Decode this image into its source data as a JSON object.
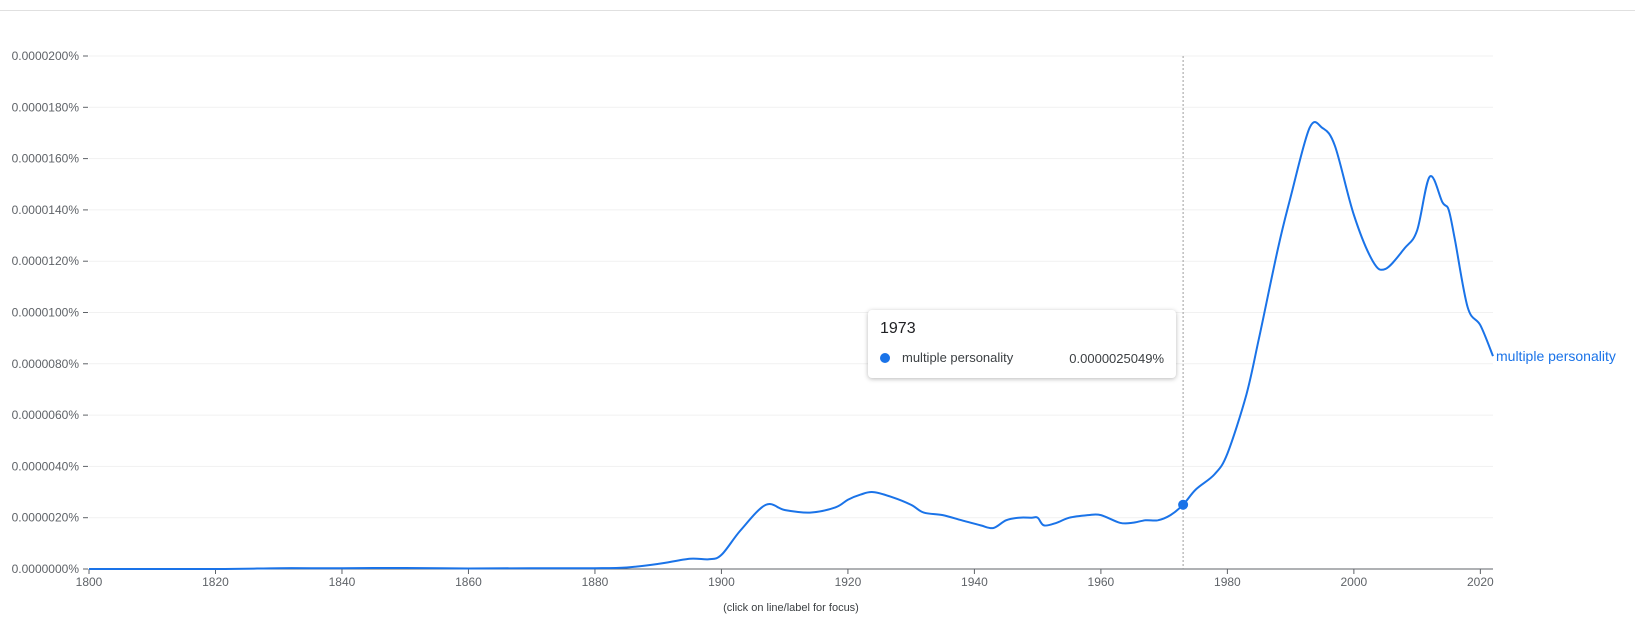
{
  "chart_data": {
    "type": "line",
    "x_ticks": [
      1800,
      1820,
      1840,
      1860,
      1880,
      1900,
      1920,
      1940,
      1960,
      1980,
      2000,
      2020
    ],
    "y_ticks": [
      "0.0000000%",
      "0.0000020%",
      "0.0000040%",
      "0.0000060%",
      "0.0000080%",
      "0.0000100%",
      "0.0000120%",
      "0.0000140%",
      "0.0000160%",
      "0.0000180%",
      "0.0000200%"
    ],
    "xlim": [
      1800,
      2022
    ],
    "ylim": [
      0,
      2e-05
    ],
    "grid": true,
    "series": [
      {
        "name": "multiple personality",
        "color": "#1a73e8",
        "x": [
          1800,
          1820,
          1830,
          1840,
          1850,
          1860,
          1870,
          1880,
          1885,
          1890,
          1895,
          1898,
          1900,
          1903,
          1907,
          1910,
          1914,
          1918,
          1920,
          1922,
          1924,
          1927,
          1930,
          1932,
          1935,
          1938,
          1941,
          1943,
          1945,
          1947,
          1949,
          1950,
          1951,
          1953,
          1955,
          1958,
          1960,
          1963,
          1965,
          1967,
          1969,
          1971,
          1973,
          1975,
          1978,
          1980,
          1983,
          1985,
          1988,
          1990,
          1993,
          1995,
          1997,
          2000,
          2003,
          2005,
          2008,
          2010,
          2012,
          2014,
          2015,
          2016,
          2018,
          2020,
          2022
        ],
        "y": [
          0.0,
          0.0,
          3e-08,
          3e-08,
          4e-08,
          2e-08,
          3e-08,
          3e-08,
          6e-08,
          2e-07,
          4e-07,
          3.8e-07,
          5.5e-07,
          1.5e-06,
          2.5e-06,
          2.3e-06,
          2.2e-06,
          2.4e-06,
          2.7e-06,
          2.9e-06,
          3e-06,
          2.8e-06,
          2.5e-06,
          2.2e-06,
          2.1e-06,
          1.9e-06,
          1.7e-06,
          1.6e-06,
          1.9e-06,
          2e-06,
          2e-06,
          2e-06,
          1.7e-06,
          1.8e-06,
          2e-06,
          2.1e-06,
          2.1e-06,
          1.8e-06,
          1.8e-06,
          1.9e-06,
          1.9e-06,
          2.1e-06,
          2.5049e-06,
          3.1e-06,
          3.7e-06,
          4.5e-06,
          6.8e-06,
          9e-06,
          1.25e-05,
          1.45e-05,
          1.72e-05,
          1.72e-05,
          1.65e-05,
          1.38e-05,
          1.2e-05,
          1.17e-05,
          1.25e-05,
          1.32e-05,
          1.53e-05,
          1.43e-05,
          1.4e-05,
          1.28e-05,
          1.02e-05,
          9.5e-06,
          8.3e-06
        ]
      }
    ],
    "hover": {
      "year": "1973",
      "series_name": "multiple personality",
      "value_text": "0.0000025049%",
      "x": 1973,
      "y": 2.5049e-06
    },
    "footnote": "(click on line/label for focus)"
  }
}
